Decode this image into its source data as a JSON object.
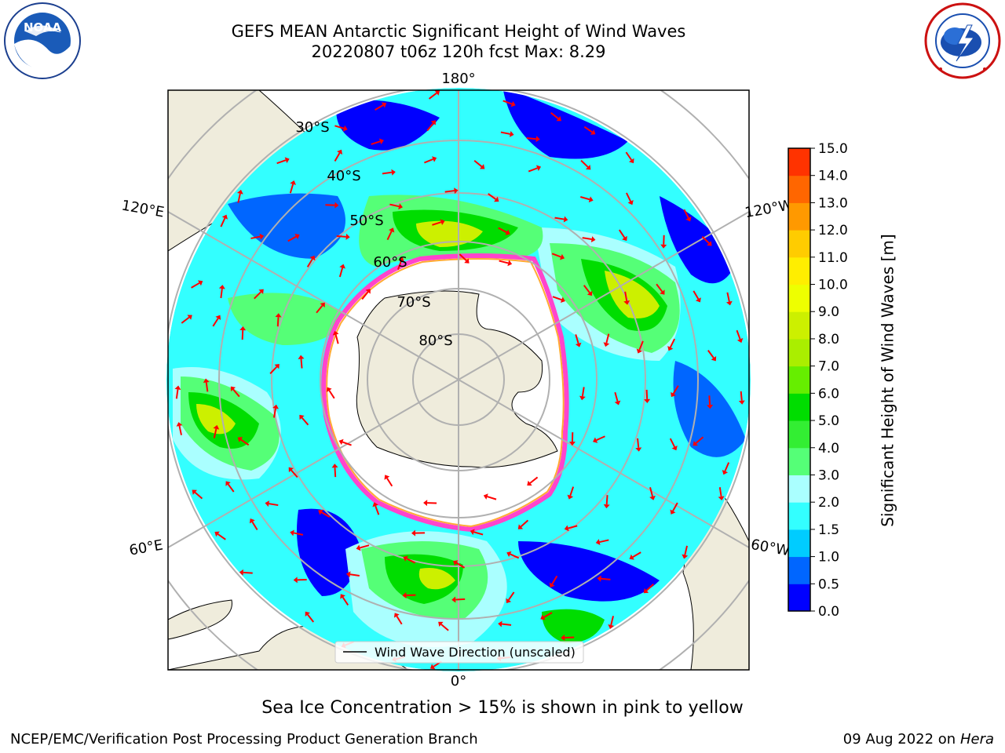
{
  "title": {
    "line1": "GEFS MEAN Antarctic Significant Height of Wind Waves",
    "line2": "20220807 t06z 120h fcst   Max: 8.29"
  },
  "logos": {
    "noaa": {
      "text": "NOAA",
      "ring_text": "NATIONAL OCEANIC AND ATMOSPHERIC ADMINISTRATION · U.S. DEPARTMENT OF COMMERCE"
    },
    "nws": {
      "ring_text": "NATIONAL WEATHER SERVICE"
    }
  },
  "map": {
    "projection": "south-polar-stereographic",
    "longitude_labels": [
      "180°",
      "120°E",
      "120°W",
      "60°E",
      "60°W",
      "0°"
    ],
    "latitude_labels": [
      "30°S",
      "40°S",
      "50°S",
      "60°S",
      "70°S",
      "80°S"
    ],
    "legend_label": "Wind Wave Direction (unscaled)",
    "colors": {
      "land": "#efecdc",
      "sea_ice_edge": [
        "#ff44cc",
        "#ffaa33",
        "#ffee33"
      ],
      "arrow": "#ff0000",
      "graticule": "#b0b0b0"
    }
  },
  "colorbar": {
    "label": "Significant Height of Wind Waves [m]",
    "ticks": [
      "0.0",
      "0.5",
      "1.0",
      "1.5",
      "2.0",
      "3.0",
      "4.0",
      "5.0",
      "6.0",
      "7.0",
      "8.0",
      "9.0",
      "10.0",
      "11.0",
      "12.0",
      "13.0",
      "14.0",
      "15.0"
    ],
    "colors": [
      "#0000ff",
      "#0066ff",
      "#00ccff",
      "#33ffff",
      "#aaffff",
      "#55ff77",
      "#33ee33",
      "#00dd00",
      "#66ee00",
      "#aaee00",
      "#ccf000",
      "#eeff00",
      "#ffee00",
      "#ffcc00",
      "#ff9900",
      "#ff6600",
      "#ff3300"
    ]
  },
  "footer": {
    "note": "Sea Ice Concentration > 15% is shown in pink to yellow",
    "left": "NCEP/EMC/Verification Post Processing Product Generation Branch",
    "right_date": "09 Aug 2022 on",
    "right_host": "Hera"
  }
}
